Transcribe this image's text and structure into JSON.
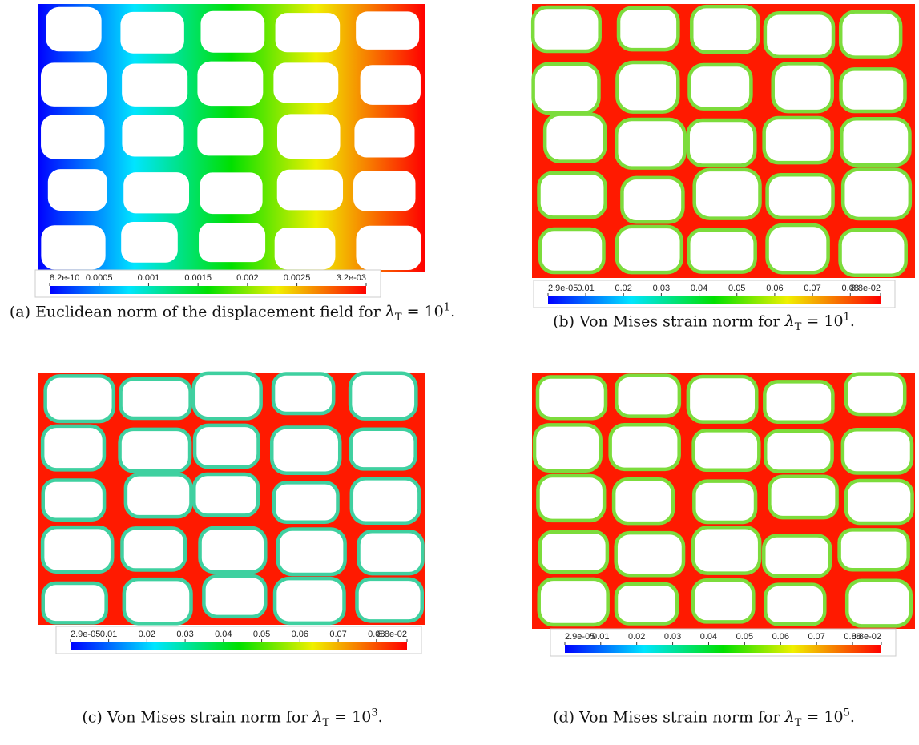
{
  "panels": [
    {
      "caption": {
        "text": "(a) Euclidean norm of the displacement field for ",
        "var": "λ",
        "sub": "T",
        "eq": " = 10",
        "sup": "1",
        "end": "."
      },
      "colorbar": {
        "range": [
          8.2e-10,
          0.0032
        ],
        "ticks": [
          8.2e-10,
          0.0005,
          0.001,
          0.0015,
          0.002,
          0.0025,
          {
            "value": 0.0032,
            "label": "3.2e-03"
          }
        ]
      }
    },
    {
      "caption": {
        "text": "(b) Von Mises strain norm for ",
        "var": "λ",
        "sub": "T",
        "eq": " = 10",
        "sup": "1",
        "end": "."
      },
      "colorbar": {
        "range": [
          2.9e-05,
          0.088
        ],
        "ticks": [
          {
            "value": 2.9e-05,
            "label": "2.9e-05"
          },
          0.01,
          0.02,
          0.03,
          0.04,
          0.05,
          0.06,
          0.07,
          {
            "value": 0.08,
            "label": "0.08"
          },
          {
            "value": 0.088,
            "label": "8.8e-02"
          }
        ]
      }
    },
    {
      "caption": {
        "text": "(c) Von Mises strain norm for ",
        "var": "λ",
        "sub": "T",
        "eq": " = 10",
        "sup": "3",
        "end": "."
      },
      "colorbar": {
        "range": [
          2.9e-05,
          0.088
        ],
        "ticks": [
          {
            "value": 2.9e-05,
            "label": "2.9e-05"
          },
          0.01,
          0.02,
          0.03,
          0.04,
          0.05,
          0.06,
          0.07,
          {
            "value": 0.08,
            "label": "0.08"
          },
          {
            "value": 0.088,
            "label": "8.8e-02"
          }
        ]
      }
    },
    {
      "caption": {
        "text": "(d) Von Mises strain norm for ",
        "var": "λ",
        "sub": "T",
        "eq": " = 10",
        "sup": "5",
        "end": "."
      },
      "colorbar": {
        "range": [
          2.9e-05,
          0.088
        ],
        "ticks": [
          {
            "value": 2.9e-05,
            "label": "2.9e-05"
          },
          0.01,
          0.02,
          0.03,
          0.04,
          0.05,
          0.06,
          0.07,
          {
            "value": 0.08,
            "label": "0.08"
          },
          {
            "value": 0.088,
            "label": "8.8e-02"
          }
        ]
      }
    }
  ]
}
